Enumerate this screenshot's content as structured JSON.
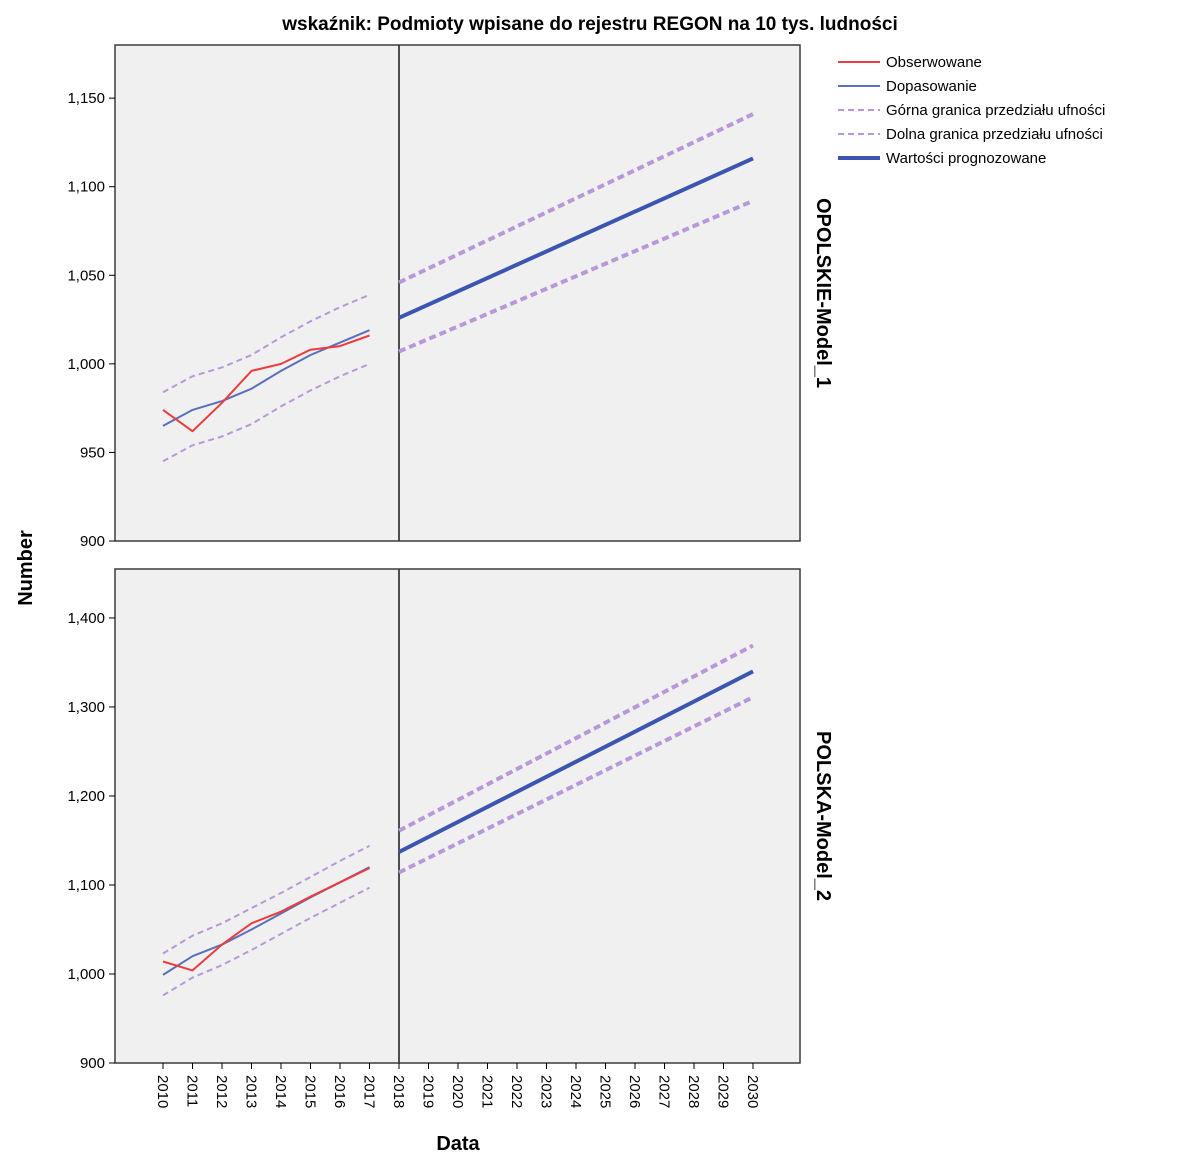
{
  "chart_data": {
    "type": "line",
    "title": "wskaźnik: Podmioty wpisane do rejestru REGON na 10 tys. ludności",
    "xlabel": "Data",
    "ylabel": "Number",
    "x_categories": [
      "2010",
      "2011",
      "2012",
      "2013",
      "2014",
      "2015",
      "2016",
      "2017",
      "2018",
      "2019",
      "2020",
      "2021",
      "2022",
      "2023",
      "2024",
      "2025",
      "2026",
      "2027",
      "2028",
      "2029",
      "2030"
    ],
    "forecast_start": "2018",
    "legend": {
      "position": "top-right",
      "entries": [
        {
          "label": "Obserwowane",
          "color": "#ee3b3b",
          "style": "solid",
          "width": 2
        },
        {
          "label": "Dopasowanie",
          "color": "#5a6fbd",
          "style": "solid",
          "width": 2
        },
        {
          "label": "Górna granica przedziału ufności",
          "color": "#b898d8",
          "style": "dashed",
          "width": 2
        },
        {
          "label": "Dolna granica przedziału ufności",
          "color": "#b898d8",
          "style": "dashed",
          "width": 2
        },
        {
          "label": "Wartości prognozowane",
          "color": "#3b55b0",
          "style": "solid",
          "width": 4
        }
      ]
    },
    "panels": [
      {
        "label": "OPOLSKIE-Model_1",
        "ylim": [
          900,
          1180
        ],
        "yticks": [
          900,
          950,
          1000,
          1050,
          1100,
          1150
        ],
        "ytick_labels": [
          "900",
          "950",
          "1,000",
          "1,050",
          "1,100",
          "1,150"
        ],
        "observed": {
          "x": [
            "2010",
            "2011",
            "2012",
            "2013",
            "2014",
            "2015",
            "2016",
            "2017"
          ],
          "y": [
            974,
            962,
            978,
            996,
            1000,
            1008,
            1010,
            1016
          ]
        },
        "fit": {
          "x": [
            "2010",
            "2011",
            "2012",
            "2013",
            "2014",
            "2015",
            "2016",
            "2017"
          ],
          "y": [
            965,
            974,
            979,
            986,
            996,
            1005,
            1012,
            1019
          ]
        },
        "fit_upper": {
          "x": [
            "2010",
            "2011",
            "2012",
            "2013",
            "2014",
            "2015",
            "2016",
            "2017"
          ],
          "y": [
            984,
            993,
            998,
            1005,
            1015,
            1024,
            1032,
            1039
          ]
        },
        "fit_lower": {
          "x": [
            "2010",
            "2011",
            "2012",
            "2013",
            "2014",
            "2015",
            "2016",
            "2017"
          ],
          "y": [
            945,
            954,
            959,
            966,
            976,
            985,
            993,
            1000
          ]
        },
        "forecast": {
          "x": [
            "2018",
            "2030"
          ],
          "y": [
            1026,
            1116
          ]
        },
        "forecast_upper": {
          "x": [
            "2018",
            "2030"
          ],
          "y": [
            1046,
            1141
          ]
        },
        "forecast_lower": {
          "x": [
            "2018",
            "2030"
          ],
          "y": [
            1007,
            1092
          ]
        }
      },
      {
        "label": "POLSKA-Model_2",
        "ylim": [
          900,
          1455
        ],
        "yticks": [
          900,
          1000,
          1100,
          1200,
          1300,
          1400
        ],
        "ytick_labels": [
          "900",
          "1,000",
          "1,100",
          "1,200",
          "1,300",
          "1,400"
        ],
        "observed": {
          "x": [
            "2010",
            "2011",
            "2012",
            "2013",
            "2014",
            "2015",
            "2016",
            "2017"
          ],
          "y": [
            1014,
            1004,
            1033,
            1057,
            1070,
            1087,
            1103,
            1119
          ]
        },
        "fit": {
          "x": [
            "2010",
            "2011",
            "2012",
            "2013",
            "2014",
            "2015",
            "2016",
            "2017"
          ],
          "y": [
            999,
            1020,
            1033,
            1050,
            1068,
            1086,
            1103,
            1120
          ]
        },
        "fit_upper": {
          "x": [
            "2010",
            "2011",
            "2012",
            "2013",
            "2014",
            "2015",
            "2016",
            "2017"
          ],
          "y": [
            1023,
            1043,
            1057,
            1074,
            1091,
            1109,
            1127,
            1144
          ]
        },
        "fit_lower": {
          "x": [
            "2010",
            "2011",
            "2012",
            "2013",
            "2014",
            "2015",
            "2016",
            "2017"
          ],
          "y": [
            976,
            996,
            1010,
            1027,
            1045,
            1063,
            1080,
            1097
          ]
        },
        "forecast": {
          "x": [
            "2018",
            "2030"
          ],
          "y": [
            1137,
            1340
          ]
        },
        "forecast_upper": {
          "x": [
            "2018",
            "2030"
          ],
          "y": [
            1161,
            1369
          ]
        },
        "forecast_lower": {
          "x": [
            "2018",
            "2030"
          ],
          "y": [
            1114,
            1311
          ]
        }
      }
    ]
  }
}
